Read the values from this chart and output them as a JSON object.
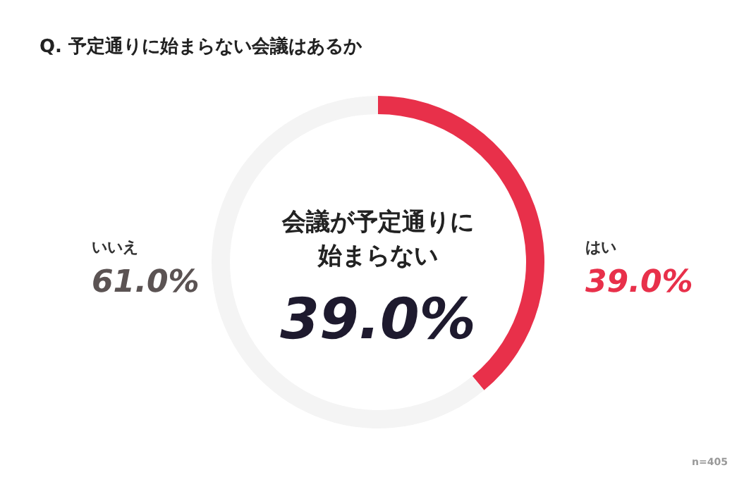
{
  "chart_data": {
    "type": "donut",
    "title": "Q. 予定通りに始まらない会議はあるか",
    "categories": [
      "はい",
      "いいえ"
    ],
    "values": [
      39.0,
      61.0
    ],
    "colors": [
      "#e8304a",
      "#f4f4f4"
    ],
    "value_labels": [
      "39.0%",
      "61.0%"
    ],
    "annotations": [
      "会議が予定通りに始まらない",
      "39.0%",
      "n=405"
    ]
  }
}
